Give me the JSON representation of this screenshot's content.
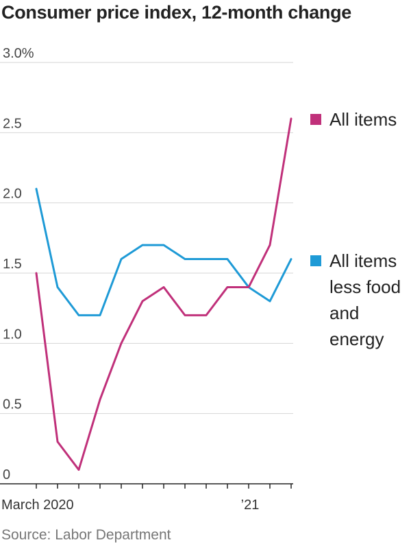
{
  "title": "Consumer price index, 12-month change",
  "source": "Source: Labor Department",
  "chart_data": {
    "type": "line",
    "title": "Consumer price index, 12-month change",
    "x": [
      "2020-03",
      "2020-04",
      "2020-05",
      "2020-06",
      "2020-07",
      "2020-08",
      "2020-09",
      "2020-10",
      "2020-11",
      "2020-12",
      "2021-01",
      "2021-02",
      "2021-03"
    ],
    "x_tick_labels": [
      {
        "at": "2020-03",
        "label": "March 2020"
      },
      {
        "at": "2021-01",
        "label": "’21"
      }
    ],
    "y_tick_labels": [
      {
        "value": 0,
        "label": "0"
      },
      {
        "value": 0.5,
        "label": "0.5"
      },
      {
        "value": 1.0,
        "label": "1.0"
      },
      {
        "value": 1.5,
        "label": "1.5"
      },
      {
        "value": 2.0,
        "label": "2.0"
      },
      {
        "value": 2.5,
        "label": "2.5"
      },
      {
        "value": 3.0,
        "label": "3.0%"
      }
    ],
    "ylim": [
      0,
      3.0
    ],
    "grid": true,
    "legend_placement": "right",
    "series": [
      {
        "name": "All items",
        "legend_lines": [
          "All items"
        ],
        "color": "#c0307a",
        "values": [
          1.5,
          0.3,
          0.1,
          0.6,
          1.0,
          1.3,
          1.4,
          1.2,
          1.2,
          1.4,
          1.4,
          1.7,
          2.6
        ]
      },
      {
        "name": "All items less food and energy",
        "legend_lines": [
          "All items",
          "less food",
          "and",
          "energy"
        ],
        "color": "#1e9ad6",
        "values": [
          2.1,
          1.4,
          1.2,
          1.2,
          1.6,
          1.7,
          1.7,
          1.6,
          1.6,
          1.6,
          1.4,
          1.3,
          1.6
        ]
      }
    ]
  }
}
